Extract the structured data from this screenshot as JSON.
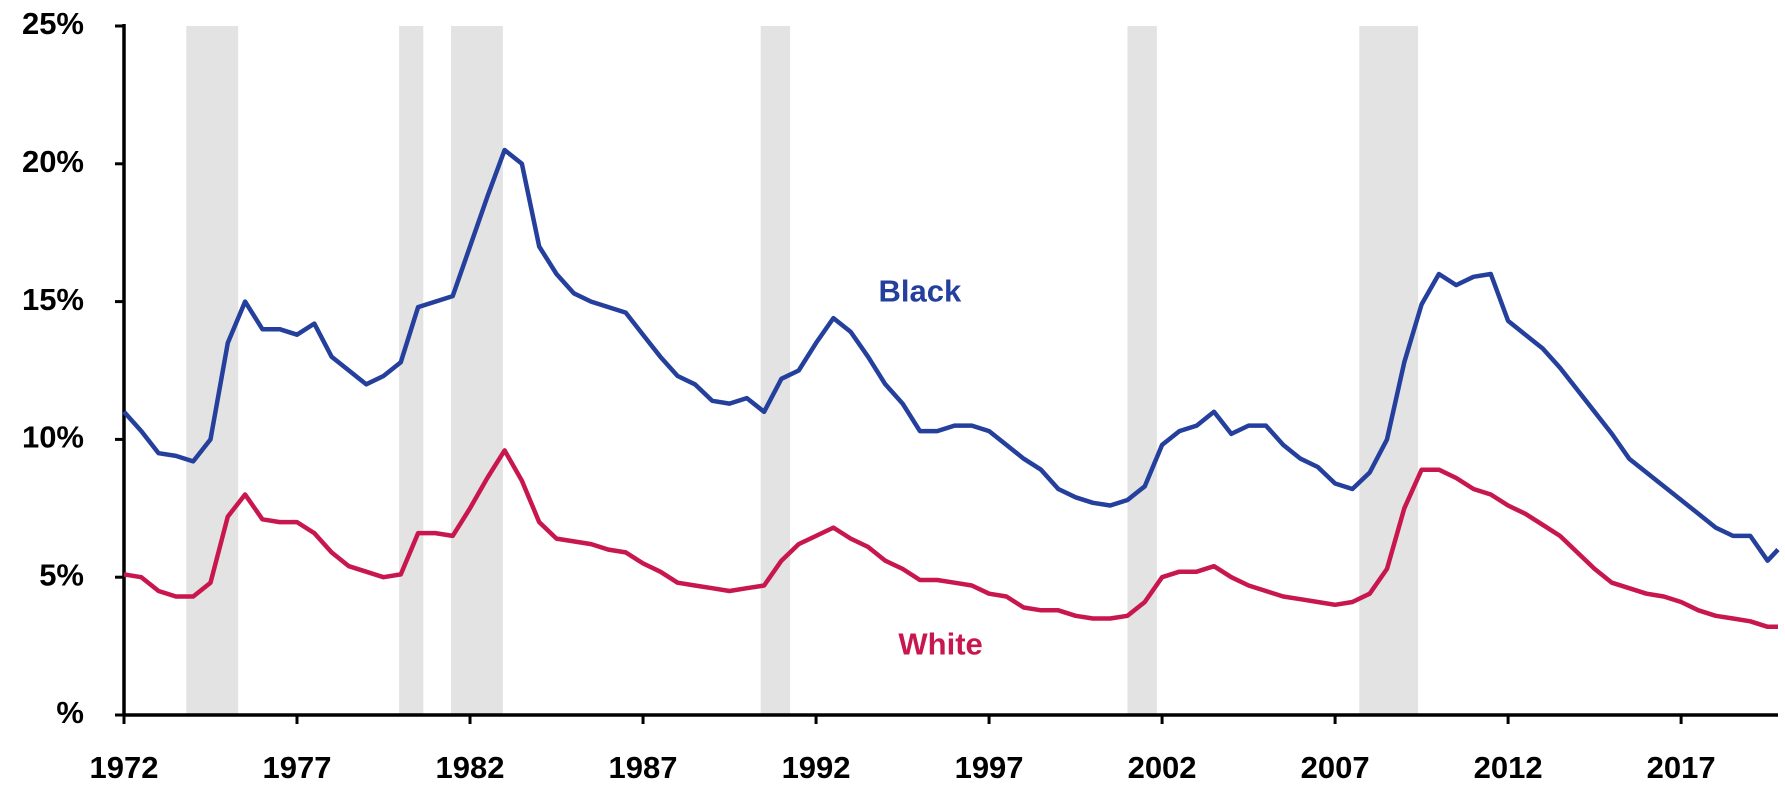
{
  "chart_data": {
    "type": "line",
    "x": [
      1972.0,
      1972.5,
      1973.0,
      1973.5,
      1974.0,
      1974.5,
      1975.0,
      1975.5,
      1976.0,
      1976.5,
      1977.0,
      1977.5,
      1978.0,
      1978.5,
      1979.0,
      1979.5,
      1980.0,
      1980.5,
      1981.0,
      1981.5,
      1982.0,
      1982.5,
      1983.0,
      1983.5,
      1984.0,
      1984.5,
      1985.0,
      1985.5,
      1986.0,
      1986.5,
      1987.0,
      1987.5,
      1988.0,
      1988.5,
      1989.0,
      1989.5,
      1990.0,
      1990.5,
      1991.0,
      1991.5,
      1992.0,
      1992.5,
      1993.0,
      1993.5,
      1994.0,
      1994.5,
      1995.0,
      1995.5,
      1996.0,
      1996.5,
      1997.0,
      1997.5,
      1998.0,
      1998.5,
      1999.0,
      1999.5,
      2000.0,
      2000.5,
      2001.0,
      2001.5,
      2002.0,
      2002.5,
      2003.0,
      2003.5,
      2004.0,
      2004.5,
      2005.0,
      2005.5,
      2006.0,
      2006.5,
      2007.0,
      2007.5,
      2008.0,
      2008.5,
      2009.0,
      2009.5,
      2010.0,
      2010.5,
      2011.0,
      2011.5,
      2012.0,
      2012.5,
      2013.0,
      2013.5,
      2014.0,
      2014.5,
      2015.0,
      2015.5,
      2016.0,
      2016.5,
      2017.0,
      2017.5,
      2018.0,
      2018.5,
      2019.0,
      2019.5,
      2019.8
    ],
    "series": [
      {
        "name": "Black",
        "color": "#253f9c",
        "values": [
          11.0,
          10.3,
          9.5,
          9.4,
          9.2,
          10.0,
          13.5,
          15.0,
          14.0,
          14.0,
          13.8,
          14.2,
          13.0,
          12.5,
          12.0,
          12.3,
          12.8,
          14.8,
          15.0,
          15.2,
          17.0,
          18.8,
          20.5,
          20.0,
          17.0,
          16.0,
          15.3,
          15.0,
          14.8,
          14.6,
          13.8,
          13.0,
          12.3,
          12.0,
          11.4,
          11.3,
          11.5,
          11.0,
          12.2,
          12.5,
          13.5,
          14.4,
          13.9,
          13.0,
          12.0,
          11.3,
          10.3,
          10.3,
          10.5,
          10.5,
          10.3,
          9.8,
          9.3,
          8.9,
          8.2,
          7.9,
          7.7,
          7.6,
          7.8,
          8.3,
          9.8,
          10.3,
          10.5,
          11.0,
          10.2,
          10.5,
          10.5,
          9.8,
          9.3,
          9.0,
          8.4,
          8.2,
          8.8,
          10.0,
          12.8,
          14.9,
          16.0,
          15.6,
          15.9,
          16.0,
          14.3,
          13.8,
          13.3,
          12.6,
          11.8,
          11.0,
          10.2,
          9.3,
          8.8,
          8.3,
          7.8,
          7.3,
          6.8,
          6.5,
          6.5,
          5.6,
          6.0
        ]
      },
      {
        "name": "White",
        "color": "#c8174e",
        "values": [
          5.1,
          5.0,
          4.5,
          4.3,
          4.3,
          4.8,
          7.2,
          8.0,
          7.1,
          7.0,
          7.0,
          6.6,
          5.9,
          5.4,
          5.2,
          5.0,
          5.1,
          6.6,
          6.6,
          6.5,
          7.5,
          8.6,
          9.6,
          8.5,
          7.0,
          6.4,
          6.3,
          6.2,
          6.0,
          5.9,
          5.5,
          5.2,
          4.8,
          4.7,
          4.6,
          4.5,
          4.6,
          4.7,
          5.6,
          6.2,
          6.5,
          6.8,
          6.4,
          6.1,
          5.6,
          5.3,
          4.9,
          4.9,
          4.8,
          4.7,
          4.4,
          4.3,
          3.9,
          3.8,
          3.8,
          3.6,
          3.5,
          3.5,
          3.6,
          4.1,
          5.0,
          5.2,
          5.2,
          5.4,
          5.0,
          4.7,
          4.5,
          4.3,
          4.2,
          4.1,
          4.0,
          4.1,
          4.4,
          5.3,
          7.5,
          8.9,
          8.9,
          8.6,
          8.2,
          8.0,
          7.6,
          7.3,
          6.9,
          6.5,
          5.9,
          5.3,
          4.8,
          4.6,
          4.4,
          4.3,
          4.1,
          3.8,
          3.6,
          3.5,
          3.4,
          3.2,
          3.2
        ]
      }
    ],
    "recessions": [
      [
        1973.8,
        1975.3
      ],
      [
        1979.95,
        1980.65
      ],
      [
        1981.45,
        1982.95
      ],
      [
        1990.4,
        1991.25
      ],
      [
        2001.0,
        2001.85
      ],
      [
        2007.7,
        2009.4
      ]
    ],
    "recession_color": "#e3e3e3",
    "xlim": [
      1972,
      2019.8
    ],
    "xticks": [
      1972,
      1977,
      1982,
      1987,
      1992,
      1997,
      2002,
      2007,
      2012,
      2017
    ],
    "ylim": [
      0,
      25
    ],
    "yticks": [
      {
        "value": 0,
        "label": "%"
      },
      {
        "value": 5,
        "label": "5%"
      },
      {
        "value": 10,
        "label": "10%"
      },
      {
        "value": 15,
        "label": "15%"
      },
      {
        "value": 20,
        "label": "20%"
      },
      {
        "value": 25,
        "label": "25%"
      }
    ],
    "grid": false
  }
}
